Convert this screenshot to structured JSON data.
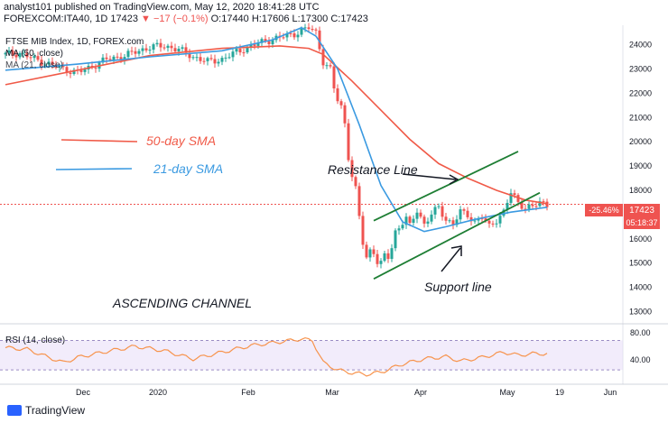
{
  "header": {
    "line1": "analyst101 published on TradingView.com, May 12, 2020 18:41:28 UTC",
    "symbol": "FOREXCOM:ITA40, 1D",
    "last": "17423",
    "change": "▼ −17 (−0.1%)",
    "ohlc": "O:17440 H:17606 L:17300 C:17423"
  },
  "legend": {
    "title": "FTSE MIB Index, 1D, FOREX.com",
    "ma50": "MA (50, close)",
    "ma21": "MA (21, close)"
  },
  "annotations": {
    "sma50": "50-day SMA",
    "sma21": "21-day SMA",
    "resistance": "Resistance Line",
    "support": "Support line",
    "channel": "ASCENDING CHANNEL"
  },
  "price_labels": {
    "pct": "-25.46%",
    "price": "17423",
    "countdown": "05:18:37"
  },
  "colors": {
    "up": "#26a69a",
    "down": "#ef5350",
    "sma50": "#f05a48",
    "sma21": "#3b9ae1",
    "channel": "#1e7e34",
    "rsi": "#f7934c",
    "rsi_band": "#e7dcf7"
  },
  "rsi": {
    "label": "RSI (14, close)",
    "ticks": [
      "80.00",
      "40.00"
    ]
  },
  "branding": {
    "logo": "TradingView"
  },
  "chart_data": [
    {
      "type": "candlestick",
      "y_ticks": [
        13000,
        14000,
        15000,
        16000,
        17000,
        18000,
        19000,
        20000,
        21000,
        22000,
        23000,
        24000
      ],
      "ylim": [
        12500,
        24800
      ],
      "x_ticks": [
        "Dec",
        "2020",
        "Feb",
        "Mar",
        "Apr",
        "May",
        "19",
        "Jun"
      ],
      "close_path": [
        [
          0,
          23600
        ],
        [
          4,
          23650
        ],
        [
          8,
          23400
        ],
        [
          12,
          23200
        ],
        [
          16,
          23000
        ],
        [
          20,
          22850
        ],
        [
          24,
          23100
        ],
        [
          28,
          23400
        ],
        [
          32,
          23500
        ],
        [
          36,
          23700
        ],
        [
          40,
          23900
        ],
        [
          44,
          23950
        ],
        [
          48,
          23800
        ],
        [
          52,
          23500
        ],
        [
          56,
          23300
        ],
        [
          60,
          23400
        ],
        [
          64,
          23700
        ],
        [
          68,
          23950
        ],
        [
          72,
          24150
        ],
        [
          76,
          24300
        ],
        [
          80,
          24450
        ],
        [
          84,
          24700
        ],
        [
          86,
          24500
        ],
        [
          88,
          23300
        ],
        [
          90,
          22700
        ],
        [
          92,
          21800
        ],
        [
          94,
          20800
        ],
        [
          96,
          18600
        ],
        [
          98,
          16800
        ],
        [
          100,
          15200
        ],
        [
          102,
          15700
        ],
        [
          104,
          14700
        ],
        [
          106,
          15400
        ],
        [
          108,
          16200
        ],
        [
          110,
          16900
        ],
        [
          112,
          16500
        ],
        [
          114,
          17200
        ],
        [
          116,
          16600
        ],
        [
          118,
          17000
        ],
        [
          120,
          17300
        ],
        [
          122,
          16800
        ],
        [
          124,
          16600
        ],
        [
          126,
          17100
        ],
        [
          128,
          17000
        ],
        [
          130,
          16700
        ],
        [
          132,
          16900
        ],
        [
          134,
          16500
        ],
        [
          136,
          16800
        ],
        [
          138,
          17100
        ],
        [
          140,
          17900
        ],
        [
          142,
          17500
        ],
        [
          144,
          17300
        ],
        [
          146,
          17300
        ],
        [
          148,
          17500
        ],
        [
          150,
          17423
        ]
      ],
      "sma50": [
        [
          0,
          22350
        ],
        [
          20,
          22950
        ],
        [
          40,
          23550
        ],
        [
          60,
          23850
        ],
        [
          76,
          23950
        ],
        [
          84,
          23850
        ],
        [
          88,
          23600
        ],
        [
          96,
          22500
        ],
        [
          104,
          21300
        ],
        [
          112,
          20100
        ],
        [
          120,
          19100
        ],
        [
          128,
          18500
        ],
        [
          136,
          18000
        ],
        [
          144,
          17600
        ],
        [
          150,
          17450
        ]
      ],
      "sma21": [
        [
          0,
          22950
        ],
        [
          20,
          23200
        ],
        [
          40,
          23500
        ],
        [
          60,
          23750
        ],
        [
          74,
          24200
        ],
        [
          82,
          24700
        ],
        [
          86,
          24350
        ],
        [
          92,
          23000
        ],
        [
          98,
          20700
        ],
        [
          104,
          18200
        ],
        [
          110,
          16700
        ],
        [
          116,
          16300
        ],
        [
          122,
          16500
        ],
        [
          130,
          16800
        ],
        [
          140,
          17100
        ],
        [
          150,
          17300
        ]
      ],
      "resistance_line": [
        [
          102,
          16750
        ],
        [
          142,
          19600
        ]
      ],
      "support_line": [
        [
          102,
          14350
        ],
        [
          148,
          17900
        ]
      ]
    },
    {
      "type": "line",
      "name": "RSI (14, close)",
      "ylim": [
        18,
        84
      ],
      "band": [
        30,
        70
      ],
      "values": [
        [
          0,
          60
        ],
        [
          6,
          58
        ],
        [
          12,
          47
        ],
        [
          16,
          40
        ],
        [
          20,
          47
        ],
        [
          28,
          55
        ],
        [
          36,
          62
        ],
        [
          44,
          56
        ],
        [
          52,
          45
        ],
        [
          60,
          54
        ],
        [
          68,
          63
        ],
        [
          76,
          68
        ],
        [
          82,
          72
        ],
        [
          85,
          70
        ],
        [
          88,
          40
        ],
        [
          92,
          30
        ],
        [
          96,
          26
        ],
        [
          100,
          24
        ],
        [
          104,
          27
        ],
        [
          110,
          38
        ],
        [
          116,
          45
        ],
        [
          122,
          48
        ],
        [
          126,
          42
        ],
        [
          132,
          47
        ],
        [
          138,
          54
        ],
        [
          142,
          50
        ],
        [
          146,
          52
        ],
        [
          150,
          52
        ]
      ]
    }
  ]
}
